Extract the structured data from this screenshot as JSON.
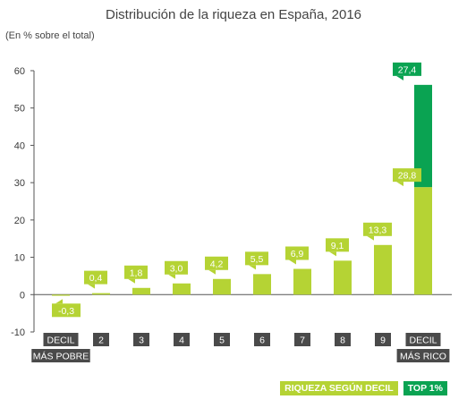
{
  "title": "Distribución de la riqueza en España, 2016",
  "subtitle": "(En % sobre el total)",
  "colors": {
    "series_main": "#b5d334",
    "series_top": "#0aa352",
    "axis": "#555555",
    "category_box": "#4a4a4a"
  },
  "legend": {
    "main_label": "RIQUEZA SEGÚN DECIL",
    "top_label": "TOP 1%"
  },
  "chart_data": {
    "type": "bar",
    "stacked": true,
    "title": "Distribución de la riqueza en España, 2016",
    "subtitle": "(En % sobre el total)",
    "categories": [
      "DECIL\nMÁS POBRE",
      "2",
      "3",
      "4",
      "5",
      "6",
      "7",
      "8",
      "9",
      "DECIL\nMÁS RICO"
    ],
    "ylim": [
      -10,
      60
    ],
    "yticks": [
      -10,
      0,
      10,
      20,
      30,
      40,
      50,
      60
    ],
    "grid": false,
    "legend_position": "bottom-right",
    "series": [
      {
        "name": "RIQUEZA SEGÚN DECIL",
        "values": [
          -0.3,
          0.4,
          1.8,
          3.0,
          4.2,
          5.5,
          6.9,
          9.1,
          13.3,
          28.8
        ],
        "labels": [
          "-0,3",
          "0,4",
          "1,8",
          "3,0",
          "4,2",
          "5,5",
          "6,9",
          "9,1",
          "13,3",
          "28,8"
        ]
      },
      {
        "name": "TOP 1%",
        "values": [
          0,
          0,
          0,
          0,
          0,
          0,
          0,
          0,
          0,
          27.4
        ],
        "labels": [
          "",
          "",
          "",
          "",
          "",
          "",
          "",
          "",
          "",
          "27,4"
        ]
      }
    ]
  }
}
